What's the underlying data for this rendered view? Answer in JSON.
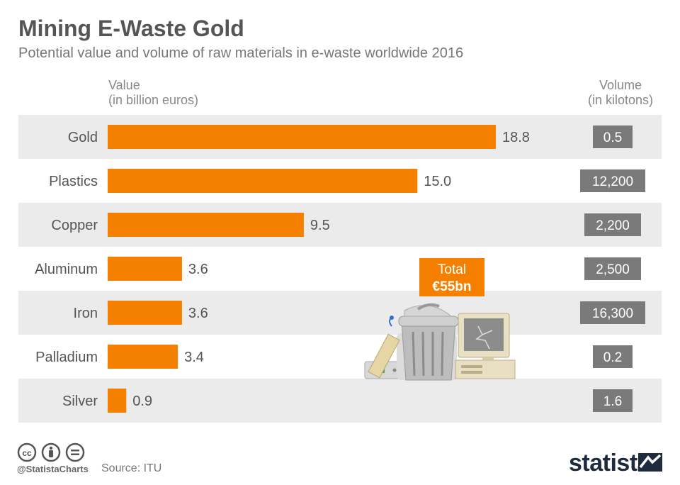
{
  "header": {
    "title": "Mining E-Waste Gold",
    "subtitle": "Potential value and volume of raw materials in e-waste worldwide 2016"
  },
  "columns": {
    "value_label_line1": "Value",
    "value_label_line2": "(in billion euros)",
    "volume_label_line1": "Volume",
    "volume_label_line2": "(in kilotons)"
  },
  "callout": {
    "line1": "Total",
    "line2": "€55bn"
  },
  "footer": {
    "handle": "@StatistaCharts",
    "source": "Source: ITU",
    "brand": "statista"
  },
  "colors": {
    "bar": "#f58000",
    "row_band": "#ebebeb",
    "volume_box": "#7a7a7a",
    "callout_box": "#f58000"
  },
  "chart_data": {
    "type": "bar",
    "orientation": "horizontal",
    "categories": [
      "Gold",
      "Plastics",
      "Copper",
      "Aluminum",
      "Iron",
      "Palladium",
      "Silver"
    ],
    "values": [
      18.8,
      15.0,
      9.5,
      3.6,
      3.6,
      3.4,
      0.9
    ],
    "value_labels": [
      "18.8",
      "15.0",
      "9.5",
      "3.6",
      "3.6",
      "3.4",
      "0.9"
    ],
    "volume_labels": [
      "0.5",
      "12,200",
      "2,200",
      "2,500",
      "16,300",
      "0.2",
      "1.6"
    ],
    "xlim": [
      0,
      20
    ],
    "grid": false,
    "legend": "none"
  }
}
